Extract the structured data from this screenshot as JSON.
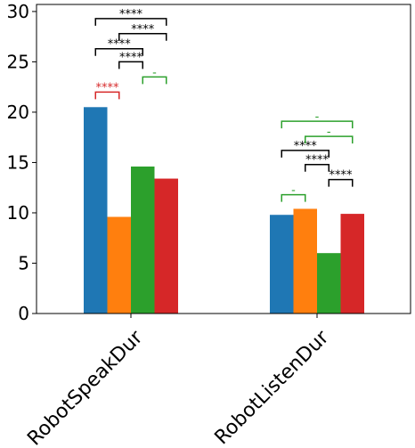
{
  "chart_data": {
    "type": "bar",
    "categories": [
      "RobotSpeakDur",
      "RobotListenDur"
    ],
    "series": [
      {
        "color": "#1f77b4",
        "values": [
          20.5,
          9.8
        ]
      },
      {
        "color": "#ff7f0e",
        "values": [
          9.6,
          10.4
        ]
      },
      {
        "color": "#2ca02c",
        "values": [
          14.6,
          6.0
        ]
      },
      {
        "color": "#d62728",
        "values": [
          13.4,
          9.9
        ]
      }
    ],
    "ylim": [
      0,
      30.7
    ],
    "yticks": [
      0,
      5,
      10,
      15,
      20,
      25,
      30
    ],
    "grid": false,
    "annotations": [
      {
        "category": 0,
        "from": 0,
        "to": 1,
        "level": 22.0,
        "text": "****",
        "color": "#d62728"
      },
      {
        "category": 0,
        "from": 2,
        "to": 3,
        "level": 23.5,
        "text": "-",
        "color": "#2ca02c"
      },
      {
        "category": 0,
        "from": 1,
        "to": 2,
        "level": 25.0,
        "text": "****",
        "color": "#000000"
      },
      {
        "category": 0,
        "from": 0,
        "to": 2,
        "level": 26.3,
        "text": "****",
        "color": "#000000"
      },
      {
        "category": 0,
        "from": 1,
        "to": 3,
        "level": 27.8,
        "text": "****",
        "color": "#000000"
      },
      {
        "category": 0,
        "from": 0,
        "to": 3,
        "level": 29.3,
        "text": "****",
        "color": "#000000"
      },
      {
        "category": 1,
        "from": 0,
        "to": 1,
        "level": 11.8,
        "text": "-",
        "color": "#2ca02c"
      },
      {
        "category": 1,
        "from": 2,
        "to": 3,
        "level": 13.3,
        "text": "****",
        "color": "#000000"
      },
      {
        "category": 1,
        "from": 1,
        "to": 2,
        "level": 14.8,
        "text": "****",
        "color": "#000000"
      },
      {
        "category": 1,
        "from": 0,
        "to": 2,
        "level": 16.2,
        "text": "****",
        "color": "#000000"
      },
      {
        "category": 1,
        "from": 1,
        "to": 3,
        "level": 17.6,
        "text": "-",
        "color": "#2ca02c"
      },
      {
        "category": 1,
        "from": 0,
        "to": 3,
        "level": 19.1,
        "text": "-",
        "color": "#2ca02c"
      }
    ]
  }
}
